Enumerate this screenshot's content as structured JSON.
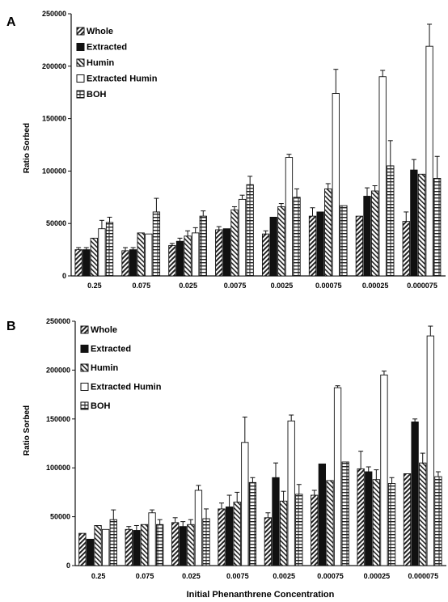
{
  "figure": {
    "xlabel": "Initial Phenanthrene Concentration"
  },
  "chart_data": [
    {
      "panel": "A",
      "type": "bar",
      "ylabel": "Ratio Sorbed",
      "xlabel": "",
      "ylim": [
        0,
        250000
      ],
      "yticks": [
        "0",
        "50000",
        "100000",
        "150000",
        "200000",
        "250000"
      ],
      "grid": false,
      "legend_position": "top-left",
      "categories": [
        "0.25",
        "0.075",
        "0.025",
        "0.0075",
        "0.0025",
        "0.00075",
        "0.00025",
        "0.000075"
      ],
      "series": [
        {
          "name": "Whole",
          "values": [
            25000,
            24000,
            29000,
            44000,
            40000,
            57000,
            57000,
            52000
          ],
          "errors": [
            2000,
            3000,
            2000,
            3000,
            3000,
            8000,
            0,
            9000
          ]
        },
        {
          "name": "Extracted",
          "values": [
            25000,
            25000,
            33000,
            45000,
            56000,
            61000,
            76000,
            101000
          ],
          "errors": [
            2000,
            2000,
            3000,
            0,
            0,
            0,
            8000,
            10000
          ]
        },
        {
          "name": "Humin",
          "values": [
            36000,
            41000,
            38000,
            63000,
            66000,
            83000,
            81000,
            97000
          ],
          "errors": [
            0,
            0,
            5000,
            3000,
            3000,
            5000,
            5000,
            0
          ]
        },
        {
          "name": "Extracted Humin",
          "values": [
            45000,
            40000,
            41000,
            73000,
            113000,
            174000,
            190000,
            219000
          ],
          "errors": [
            8000,
            0,
            5000,
            4000,
            3000,
            23000,
            6000,
            21000
          ]
        },
        {
          "name": "BOH",
          "values": [
            51000,
            61000,
            57000,
            87000,
            75000,
            67000,
            105000,
            93000
          ],
          "errors": [
            5000,
            13000,
            5000,
            8000,
            8000,
            0,
            24000,
            21000
          ]
        }
      ]
    },
    {
      "panel": "B",
      "type": "bar",
      "ylabel": "Ratio Sorbed",
      "xlabel": "Initial Phenanthrene Concentration",
      "ylim": [
        0,
        250000
      ],
      "yticks": [
        "0",
        "50000",
        "100000",
        "150000",
        "200000",
        "250000"
      ],
      "grid": false,
      "legend_position": "top-left",
      "categories": [
        "0.25",
        "0.075",
        "0.025",
        "0.0075",
        "0.0025",
        "0.00075",
        "0.00025",
        "0.000075"
      ],
      "series": [
        {
          "name": "Whole",
          "values": [
            33000,
            37000,
            44000,
            58000,
            49000,
            72000,
            99000,
            94000
          ],
          "errors": [
            0,
            3000,
            5000,
            6000,
            5000,
            5000,
            18000,
            0
          ]
        },
        {
          "name": "Extracted",
          "values": [
            27000,
            36000,
            40000,
            60000,
            90000,
            104000,
            96000,
            147000
          ],
          "errors": [
            0,
            5000,
            5000,
            12000,
            15000,
            0,
            5000,
            3000
          ]
        },
        {
          "name": "Humin",
          "values": [
            41000,
            42000,
            42000,
            65000,
            66000,
            87000,
            88000,
            105000
          ],
          "errors": [
            0,
            0,
            5000,
            10000,
            10000,
            0,
            10000,
            10000
          ]
        },
        {
          "name": "Extracted Humin",
          "values": [
            37000,
            54000,
            77000,
            126000,
            148000,
            182000,
            195000,
            235000
          ],
          "errors": [
            0,
            3000,
            5000,
            26000,
            6000,
            2000,
            4000,
            10000
          ]
        },
        {
          "name": "BOH",
          "values": [
            47000,
            42000,
            48000,
            85000,
            73000,
            106000,
            84000,
            91000
          ],
          "errors": [
            10000,
            5000,
            10000,
            5000,
            10000,
            0,
            6000,
            5000
          ]
        }
      ]
    }
  ]
}
